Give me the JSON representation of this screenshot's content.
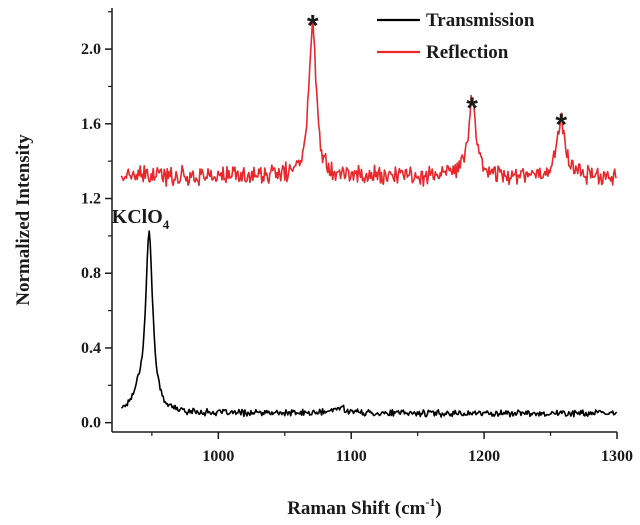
{
  "chart_data": {
    "type": "line",
    "xlabel": "Raman Shift (cm",
    "xlabel_sup": "-1",
    "xlabel_close": ")",
    "ylabel": "Normalized Intensity",
    "xlim": [
      920,
      1300
    ],
    "ylim": [
      -0.05,
      2.22
    ],
    "x_ticks": [
      1000,
      1100,
      1200,
      1300
    ],
    "y_ticks": [
      0.0,
      0.4,
      0.8,
      1.2,
      1.6,
      2.0
    ],
    "grid": false,
    "legend_position": "top-right",
    "series": [
      {
        "name": "Transmission",
        "color": "#000000",
        "baseline": 0.05,
        "noise": 0.014,
        "peaks": [
          {
            "x": 948,
            "height": 0.95,
            "width": 3.2
          },
          {
            "x": 940,
            "height": 0.08,
            "width": 5
          },
          {
            "x": 1092,
            "height": 0.03,
            "width": 6
          }
        ]
      },
      {
        "name": "Reflection",
        "color": "#e8282a",
        "baseline": 1.32,
        "noise": 0.04,
        "peaks": [
          {
            "x": 1071,
            "height": 0.84,
            "width": 3.2
          },
          {
            "x": 1191,
            "height": 0.41,
            "width": 3.5
          },
          {
            "x": 1258,
            "height": 0.32,
            "width": 3.5
          }
        ]
      }
    ],
    "annotations": [
      {
        "text": "KClO",
        "sub": "4",
        "x": 922,
        "y": 1.07
      },
      {
        "text": "*",
        "x": 1071,
        "y": 2.2
      },
      {
        "text": "*",
        "x": 1191,
        "y": 1.76
      },
      {
        "text": "*",
        "x": 1258,
        "y": 1.67
      }
    ]
  }
}
